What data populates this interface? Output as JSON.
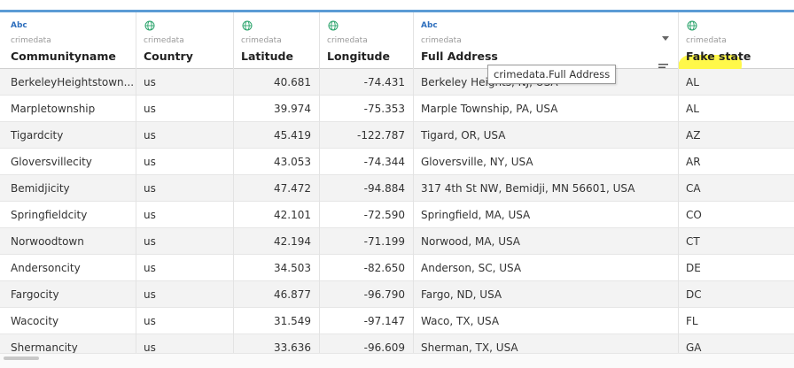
{
  "colors": {
    "accent": "#5b9bd5",
    "type_abc": "#2e6fbd",
    "globe": "#2aa36b",
    "highlight": "#fff84a"
  },
  "columns": [
    {
      "type": "Abc",
      "icon": "abc-type-icon",
      "source": "crimedata",
      "name": "Communityname"
    },
    {
      "type": "geo",
      "icon": "globe-icon",
      "source": "crimedata",
      "name": "Country"
    },
    {
      "type": "geo",
      "icon": "globe-icon",
      "source": "crimedata",
      "name": "Latitude"
    },
    {
      "type": "geo",
      "icon": "globe-icon",
      "source": "crimedata",
      "name": "Longitude"
    },
    {
      "type": "Abc",
      "icon": "abc-type-icon",
      "source": "crimedata",
      "name": "Full Address"
    },
    {
      "type": "geo",
      "icon": "globe-icon",
      "source": "crimedata",
      "name": "Fake state"
    }
  ],
  "tooltip": "crimedata.Full Address",
  "rows": [
    [
      "BerkeleyHeightstown...",
      "us",
      "40.681",
      "-74.431",
      "Berkeley Heights, NJ, USA",
      "AL"
    ],
    [
      "Marpletownship",
      "us",
      "39.974",
      "-75.353",
      "Marple Township, PA, USA",
      "AL"
    ],
    [
      "Tigardcity",
      "us",
      "45.419",
      "-122.787",
      "Tigard, OR, USA",
      "AZ"
    ],
    [
      "Gloversvillecity",
      "us",
      "43.053",
      "-74.344",
      "Gloversville, NY, USA",
      "AR"
    ],
    [
      "Bemidjicity",
      "us",
      "47.472",
      "-94.884",
      "317 4th St NW, Bemidji, MN 56601, USA",
      "CA"
    ],
    [
      "Springfieldcity",
      "us",
      "42.101",
      "-72.590",
      "Springfield, MA, USA",
      "CO"
    ],
    [
      "Norwoodtown",
      "us",
      "42.194",
      "-71.199",
      "Norwood, MA, USA",
      "CT"
    ],
    [
      "Andersoncity",
      "us",
      "34.503",
      "-82.650",
      "Anderson, SC, USA",
      "DE"
    ],
    [
      "Fargocity",
      "us",
      "46.877",
      "-96.790",
      "Fargo, ND, USA",
      "DC"
    ],
    [
      "Wacocity",
      "us",
      "31.549",
      "-97.147",
      "Waco, TX, USA",
      "FL"
    ],
    [
      "Shermancity",
      "us",
      "33.636",
      "-96.609",
      "Sherman, TX, USA",
      "GA"
    ]
  ]
}
